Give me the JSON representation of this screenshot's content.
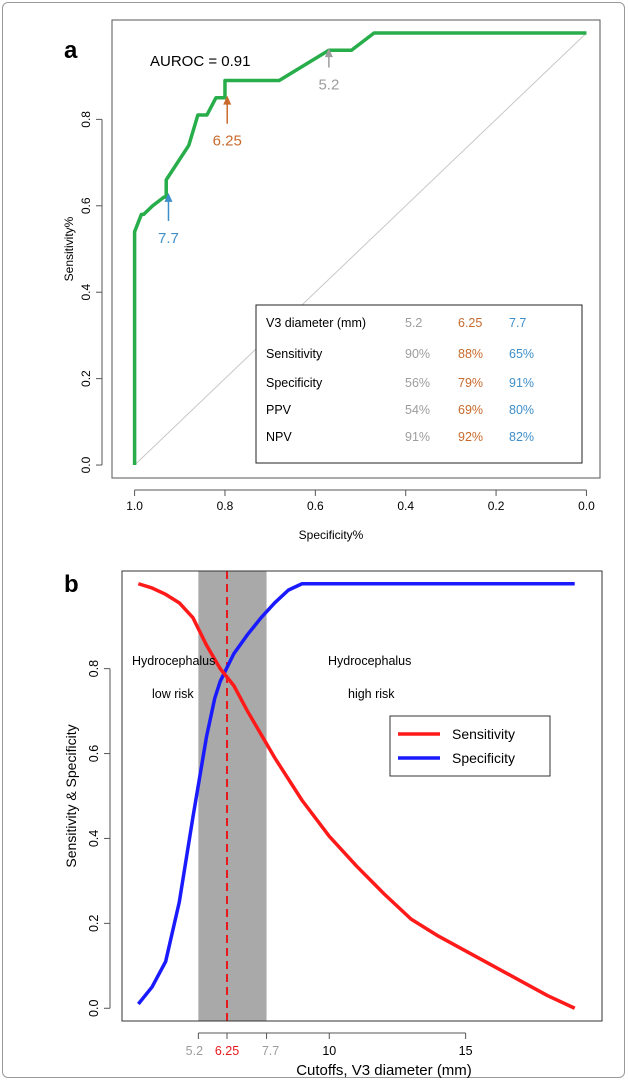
{
  "chart_data": [
    {
      "panel_label": "a",
      "type": "line",
      "xlabel": "Specificity%",
      "ylabel": "Sensitivity%",
      "xlim": [
        1.05,
        -0.03
      ],
      "ylim": [
        -0.03,
        1.03
      ],
      "x_reversed": true,
      "xticks": [
        1.0,
        0.8,
        0.6,
        0.4,
        0.2,
        0.0
      ],
      "xtick_labels": [
        "1.0",
        "0.8",
        "0.6",
        "0.4",
        "0.2",
        "0.0"
      ],
      "yticks": [
        0.0,
        0.2,
        0.4,
        0.6,
        0.8
      ],
      "ytick_labels": [
        "0.0",
        "0.2",
        "0.4",
        "0.6",
        "0.8"
      ],
      "annotation": "AUROC = 0.91",
      "colors": {
        "roc": "#27ad4a",
        "diagonal": "#c8c8c8",
        "gray": "#9d9d9d",
        "orange": "#c86a2c",
        "blue": "#3f8fc9"
      },
      "roc_curve": {
        "x": [
          1.0,
          1.0,
          1.0,
          0.985,
          0.98,
          0.96,
          0.935,
          0.93,
          0.93,
          0.88,
          0.86,
          0.84,
          0.82,
          0.8,
          0.8,
          0.68,
          0.57,
          0.52,
          0.47,
          0.0
        ],
        "y": [
          0.0,
          0.54,
          0.54,
          0.58,
          0.58,
          0.6,
          0.62,
          0.62,
          0.66,
          0.74,
          0.81,
          0.81,
          0.85,
          0.85,
          0.89,
          0.89,
          0.96,
          0.96,
          1.0,
          1.0
        ]
      },
      "cutoff_arrows": [
        {
          "label": "5.2",
          "x": 0.57,
          "y_tip": 0.965,
          "y_tail": 0.92,
          "color": "gray",
          "label_side": "below"
        },
        {
          "label": "6.25",
          "x": 0.795,
          "y_tip": 0.855,
          "y_tail": 0.79,
          "color": "orange",
          "label_side": "below"
        },
        {
          "label": "7.7",
          "x": 0.925,
          "y_tip": 0.63,
          "y_tail": 0.565,
          "color": "blue",
          "label_side": "below"
        }
      ],
      "table": {
        "header": "V3 diameter (mm)",
        "columns": [
          "5.2",
          "6.25",
          "7.7"
        ],
        "rows": [
          {
            "label": "Sensitivity",
            "values": [
              "90%",
              "88%",
              "65%"
            ]
          },
          {
            "label": "Specificity",
            "values": [
              "56%",
              "79%",
              "91%"
            ]
          },
          {
            "label": "PPV",
            "values": [
              "54%",
              "69%",
              "80%"
            ]
          },
          {
            "label": "NPV",
            "values": [
              "91%",
              "92%",
              "82%"
            ]
          }
        ]
      }
    },
    {
      "panel_label": "b",
      "type": "line",
      "xlabel": "Cutoffs, V3 diameter (mm)",
      "ylabel": "Sensitivity & Specificity",
      "xlim": [
        2.4,
        20.0
      ],
      "ylim": [
        -0.03,
        1.03
      ],
      "xticks": [
        10,
        15
      ],
      "xtick_labels": [
        "10",
        "15"
      ],
      "yticks": [
        0.0,
        0.2,
        0.4,
        0.6,
        0.8
      ],
      "ytick_labels": [
        "0.0",
        "0.2",
        "0.4",
        "0.6",
        "0.8"
      ],
      "cutoff_marks": [
        {
          "value": 5.2,
          "label": "5.2",
          "color": "gray"
        },
        {
          "value": 6.25,
          "label": "6.25",
          "color": "red"
        },
        {
          "value": 7.7,
          "label": "7.7",
          "color": "gray"
        }
      ],
      "shaded_band": [
        5.2,
        7.7
      ],
      "dashed_line_at": 6.25,
      "region_labels": {
        "low": [
          "Hydrocephalus",
          "low risk"
        ],
        "high": [
          "Hydrocephalus",
          "high risk"
        ]
      },
      "legend": {
        "position": "right-middle"
      },
      "colors": {
        "sensitivity": "#ff1a1a",
        "specificity": "#1a1aff",
        "band": "#a9a9a9",
        "dashed": "#e8191d",
        "tick_gray": "#9d9d9d",
        "tick_red": "#e8191d"
      },
      "series": [
        {
          "name": "Sensitivity",
          "color": "sensitivity",
          "x": [
            3.0,
            3.5,
            4.0,
            4.5,
            5.0,
            5.5,
            6.0,
            6.5,
            7.0,
            7.5,
            8.0,
            9.0,
            10.0,
            11.0,
            12.0,
            13.0,
            14.0,
            15.0,
            16.0,
            17.0,
            18.0,
            19.0
          ],
          "y": [
            1.0,
            0.99,
            0.975,
            0.955,
            0.92,
            0.855,
            0.8,
            0.76,
            0.7,
            0.645,
            0.59,
            0.49,
            0.405,
            0.335,
            0.27,
            0.21,
            0.17,
            0.135,
            0.1,
            0.065,
            0.03,
            0.0
          ]
        },
        {
          "name": "Specificity",
          "color": "specificity",
          "x": [
            3.0,
            3.5,
            4.0,
            4.5,
            5.0,
            5.5,
            5.8,
            6.0,
            6.5,
            7.0,
            7.5,
            8.0,
            8.5,
            9.0,
            9.5,
            10.0,
            11.0,
            12.0,
            15.0,
            19.0
          ],
          "y": [
            0.01,
            0.05,
            0.11,
            0.25,
            0.45,
            0.64,
            0.73,
            0.77,
            0.835,
            0.88,
            0.92,
            0.955,
            0.985,
            1.0,
            1.0,
            1.0,
            1.0,
            1.0,
            1.0,
            1.0
          ]
        }
      ]
    }
  ]
}
